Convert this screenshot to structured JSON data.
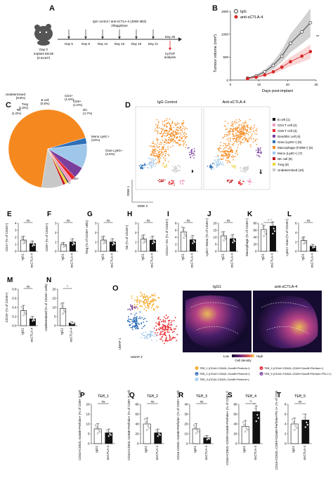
{
  "panels": {
    "A": {
      "letter": "A",
      "mouse_day0": "Day 0",
      "mouse_implant": "Implant MC38",
      "mouse_cells": "(0.5x10⁶)",
      "treatment_line1": "IgG control / anti-sCTLA-4 (JMW-3B3)",
      "treatment_line2": "200µg/dose",
      "days": [
        "Day 6",
        "Day 9",
        "Day 12",
        "Day 15",
        "Day 18",
        "Day 21",
        "Day 28"
      ],
      "cytof_line1": "CyTOF",
      "cytof_line2": "analysis"
    },
    "B": {
      "letter": "B",
      "legend": [
        "IgG",
        "anti-sCTLA-4"
      ],
      "ylabel": "Tumour volume (mm³)",
      "xlabel": "Days post-implant",
      "yticks": [
        "0",
        "500",
        "1000",
        "1500"
      ],
      "xticks": [
        "0",
        "10",
        "20",
        "30"
      ],
      "sig": "**",
      "colors": {
        "igg": "#333333",
        "anti": "#d62728"
      }
    },
    "C": {
      "letter": "C",
      "slices": [
        {
          "label": "Macrophage F4/80+",
          "pct": "(67.2%)",
          "value": 67.2,
          "color": "#f5891f"
        },
        {
          "label": "Gran Ly6G+",
          "pct": "(2.5%)",
          "value": 2.5,
          "color": "#2e6fb7"
        },
        {
          "label": "Mono Ly6C+",
          "pct": "(10%)",
          "value": 10,
          "color": "#9ec7ea"
        },
        {
          "label": "DC",
          "pct": "(4.7%)",
          "value": 4.7,
          "color": "#7a3e9d"
        },
        {
          "label": "CD8+",
          "pct": "(1.6%)",
          "value": 1.6,
          "color": "#e5262b"
        },
        {
          "label": "CD4+",
          "pct": "(1.6%)",
          "value": 1.6,
          "color": "#f19ac1"
        },
        {
          "label": "B cell",
          "pct": "(0.5%)",
          "value": 0.5,
          "color": "#111111"
        },
        {
          "label": "Treg",
          "pct": "(1.0%)",
          "value": 1.0,
          "color": "#f1d33a"
        },
        {
          "label": "NK",
          "pct": "(1.0%)",
          "value": 1.0,
          "color": "#c4141b"
        },
        {
          "label": "Undetermined",
          "pct": "(8.8%)",
          "value": 8.8,
          "color": "#c8c8c8"
        }
      ]
    },
    "D": {
      "letter": "D",
      "title_left": "IgG Control",
      "title_right": "Anti-sCTLA-4",
      "axis_y": "tSNE 1",
      "axis_x": "tSNE 2",
      "legend": [
        {
          "label": "B cell (1)",
          "color": "#111111"
        },
        {
          "label": "CD4 T cell (2)",
          "color": "#f19ac1"
        },
        {
          "label": "CD8 T cell (3)",
          "color": "#e5262b"
        },
        {
          "label": "Dendritic cell (4)",
          "color": "#7a3e9d"
        },
        {
          "label": "Gran (Ly6G+) (5)",
          "color": "#2e6fb7"
        },
        {
          "label": "Macrophage (F4/80+) (6)",
          "color": "#f5891f"
        },
        {
          "label": "Mono (Ly6C+) (7)",
          "color": "#9ec7ea"
        },
        {
          "label": "NK cell (8)",
          "color": "#c4141b"
        },
        {
          "label": "Treg (9)",
          "color": "#f1d33a"
        },
        {
          "label": "Undetermined (10)",
          "color": "#c8c8c8"
        }
      ]
    },
    "bars_row1": [
      {
        "letter": "E",
        "ylabel": "CD4+ (% of CD45+)",
        "yticks": [
          "0",
          "1",
          "2",
          "3",
          "4"
        ],
        "ymax": 4,
        "values": [
          1.6,
          1.1
        ],
        "sig": "ns"
      },
      {
        "letter": "F",
        "ylabel": "CD8+ (% of CD45+)",
        "yticks": [
          "0",
          "1",
          "2",
          "3"
        ],
        "ymax": 3,
        "values": [
          0.7,
          1.0
        ],
        "sig": "ns"
      },
      {
        "letter": "G",
        "ylabel": "Treg (% of CD45+ cells)",
        "yticks": [
          "0",
          "1",
          "2",
          "3"
        ],
        "ymax": 3,
        "values": [
          1.2,
          1.0
        ],
        "sig": "ns"
      },
      {
        "letter": "H",
        "ylabel": "NK (% of CD45+)",
        "yticks": [
          "0",
          "1",
          "2",
          "3"
        ],
        "ymax": 3,
        "values": [
          1.3,
          1.2
        ],
        "sig": "ns"
      },
      {
        "letter": "I",
        "ylabel": "CD11c+ DC (% of CD45+)",
        "yticks": [
          "0",
          "2",
          "4",
          "6",
          "8"
        ],
        "ymax": 8,
        "values": [
          5.5,
          3.3
        ],
        "sig": "ns"
      },
      {
        "letter": "J",
        "ylabel": "Ly6C+ Mono (% of CD45+)",
        "yticks": [
          "0",
          "5",
          "10",
          "15",
          "20"
        ],
        "ymax": 20,
        "values": [
          11,
          9
        ],
        "sig": "ns"
      },
      {
        "letter": "K",
        "ylabel": "Macrophage (% of CD45+)",
        "yticks": [
          "0",
          "20",
          "40",
          "60",
          "80"
        ],
        "ymax": 80,
        "values": [
          62,
          72
        ],
        "sig": "*"
      },
      {
        "letter": "L",
        "ylabel": "Ly6G+ Gran (% of CD45+)",
        "yticks": [
          "0",
          "2",
          "4",
          "6"
        ],
        "ymax": 6,
        "values": [
          2.3,
          1.1
        ],
        "sig": "ns"
      }
    ],
    "bars_row2": [
      {
        "letter": "M",
        "ylabel": "CD19+ (% of CD45+)",
        "yticks": [
          "0.0",
          "0.2",
          "0.4",
          "0.6",
          "0.8"
        ],
        "ymax": 0.8,
        "values": [
          0.33,
          0.15
        ],
        "sig": "ns"
      },
      {
        "letter": "N",
        "ylabel": "Undetermined (% of CD45+ cells)",
        "yticks": [
          "0",
          "5",
          "10",
          "15",
          "20"
        ],
        "ymax": 20,
        "values": [
          9.5,
          1.5
        ],
        "sig": "*"
      }
    ],
    "O": {
      "letter": "O",
      "umap_y": "UMAP 1",
      "umap_x": "UMAP 2",
      "title_left": "IgG1",
      "title_right": "anti-sCTLA-4",
      "density_low": "Low",
      "density_high": "High",
      "density_label": "Cell density",
      "legend": [
        {
          "num": "1",
          "label": "TEff_1 (CD44+CD62L-GzmB+Perforin+)",
          "color": "#f5a623"
        },
        {
          "num": "2",
          "label": "TEff_2 (CD44+CD62L-GzmB+Perforin+)",
          "color": "#2e6fb7"
        },
        {
          "num": "3",
          "label": "TEff_3 (CD44-CD62L-GzmB+Perforin+)",
          "color": "#9ec7ea"
        },
        {
          "num": "4",
          "label": "TEff_4 (CD44+CD62L-CD69+GzmB+Perforin+)",
          "color": "#e5262b"
        },
        {
          "num": "5",
          "label": "TEff_5 (CD44+CD62L-CD69+GzmB+Perforin+PD-1+)",
          "color": "#7a3e9d"
        }
      ]
    },
    "bars_row3": [
      {
        "letter": "P",
        "title": "TEff_1",
        "ylabel": "CD44+CD62L-GzmB+Perforin+ (% of CD8+ T cells)",
        "yticks": [
          "0",
          "5",
          "10",
          "15",
          "20"
        ],
        "ymax": 20,
        "values": [
          7.5,
          5.5
        ],
        "sig": "ns"
      },
      {
        "letter": "Q",
        "title": "TEff_2",
        "ylabel": "CD44+CD62L-GzmB+Perforin+ (% of CD8+ T cells)",
        "yticks": [
          "0",
          "20",
          "40",
          "60",
          "80"
        ],
        "ymax": 80,
        "values": [
          40,
          22
        ],
        "sig": "ns"
      },
      {
        "letter": "R",
        "title": "TEff_3",
        "ylabel": "CD44-CD62L-GzmB+Perforin+ (% of CD8+ T cells)",
        "yticks": [
          "0",
          "10",
          "20",
          "30",
          "40"
        ],
        "ymax": 40,
        "values": [
          15,
          6
        ],
        "sig": "ns"
      },
      {
        "letter": "S",
        "title": "TEff_4",
        "ylabel": "CD44+CD62L-CD69+GzmB+Perforin+ (% of CD8+ T cells)",
        "yticks": [
          "0",
          "20",
          "40",
          "60",
          "80"
        ],
        "ymax": 80,
        "values": [
          35,
          65
        ],
        "sig": "**"
      },
      {
        "letter": "T",
        "title": "TEff_5",
        "ylabel": "CD44+CD62L-CD69+GzmB+Perforin+PD-1+ (% of CD8+ T cells)",
        "yticks": [
          "0",
          "2",
          "4",
          "6",
          "8"
        ],
        "ymax": 8,
        "values": [
          4.0,
          4.8
        ],
        "sig": "ns"
      }
    ],
    "group_labels": [
      "IgG1",
      "αsCTLA-4"
    ]
  },
  "chart_data": [
    {
      "type": "line",
      "panel": "B",
      "xlabel": "Days post-implant",
      "ylabel": "Tumour volume (mm³)",
      "xlim": [
        0,
        30
      ],
      "ylim": [
        0,
        1500
      ],
      "series": [
        {
          "name": "IgG",
          "x": [
            6,
            9,
            12,
            15,
            18,
            21,
            25,
            28
          ],
          "values": [
            40,
            90,
            180,
            320,
            520,
            800,
            1050,
            1250
          ]
        },
        {
          "name": "anti-sCTLA-4",
          "x": [
            6,
            9,
            12,
            15,
            18,
            21,
            25,
            28
          ],
          "values": [
            30,
            60,
            110,
            180,
            280,
            400,
            520,
            620
          ]
        }
      ]
    },
    {
      "type": "pie",
      "panel": "C",
      "categories": [
        "Macrophage F4/80+",
        "Gran Ly6G+",
        "Mono Ly6C+",
        "DC",
        "CD8+",
        "CD4+",
        "B cell",
        "Treg",
        "NK",
        "Undetermined"
      ],
      "values": [
        67.2,
        2.5,
        10,
        4.7,
        1.6,
        1.6,
        0.5,
        1.0,
        1.0,
        8.8
      ]
    },
    {
      "type": "bar",
      "panel": "E",
      "categories": [
        "IgG1",
        "αsCTLA-4"
      ],
      "values": [
        1.6,
        1.1
      ],
      "ylabel": "CD4+ (% of CD45+)",
      "ylim": [
        0,
        4
      ]
    },
    {
      "type": "bar",
      "panel": "F",
      "categories": [
        "IgG1",
        "αsCTLA-4"
      ],
      "values": [
        0.7,
        1.0
      ],
      "ylabel": "CD8+ (% of CD45+)",
      "ylim": [
        0,
        3
      ]
    },
    {
      "type": "bar",
      "panel": "G",
      "categories": [
        "IgG1",
        "αsCTLA-4"
      ],
      "values": [
        1.2,
        1.0
      ],
      "ylabel": "Treg (% of CD45+ cells)",
      "ylim": [
        0,
        3
      ]
    },
    {
      "type": "bar",
      "panel": "H",
      "categories": [
        "IgG1",
        "αsCTLA-4"
      ],
      "values": [
        1.3,
        1.2
      ],
      "ylabel": "NK (% of CD45+)",
      "ylim": [
        0,
        3
      ]
    },
    {
      "type": "bar",
      "panel": "I",
      "categories": [
        "IgG1",
        "αsCTLA-4"
      ],
      "values": [
        5.5,
        3.3
      ],
      "ylabel": "CD11c+ DC (% of CD45+)",
      "ylim": [
        0,
        8
      ]
    },
    {
      "type": "bar",
      "panel": "J",
      "categories": [
        "IgG1",
        "αsCTLA-4"
      ],
      "values": [
        11,
        9
      ],
      "ylabel": "Ly6C+ Mono (% of CD45+)",
      "ylim": [
        0,
        20
      ]
    },
    {
      "type": "bar",
      "panel": "K",
      "categories": [
        "IgG1",
        "αsCTLA-4"
      ],
      "values": [
        62,
        72
      ],
      "ylabel": "Macrophage (% of CD45+)",
      "ylim": [
        0,
        80
      ]
    },
    {
      "type": "bar",
      "panel": "L",
      "categories": [
        "IgG1",
        "αsCTLA-4"
      ],
      "values": [
        2.3,
        1.1
      ],
      "ylabel": "Ly6G+ Gran (% of CD45+)",
      "ylim": [
        0,
        6
      ]
    },
    {
      "type": "bar",
      "panel": "M",
      "categories": [
        "IgG1",
        "αsCTLA-4"
      ],
      "values": [
        0.33,
        0.15
      ],
      "ylabel": "CD19+ (% of CD45+)",
      "ylim": [
        0,
        0.8
      ]
    },
    {
      "type": "bar",
      "panel": "N",
      "categories": [
        "IgG1",
        "αsCTLA-4"
      ],
      "values": [
        9.5,
        1.5
      ],
      "ylabel": "Undetermined (% of CD45+ cells)",
      "ylim": [
        0,
        20
      ]
    },
    {
      "type": "bar",
      "panel": "P",
      "categories": [
        "IgG1",
        "αsCTLA-4"
      ],
      "values": [
        7.5,
        5.5
      ],
      "ylim": [
        0,
        20
      ]
    },
    {
      "type": "bar",
      "panel": "Q",
      "categories": [
        "IgG1",
        "αsCTLA-4"
      ],
      "values": [
        40,
        22
      ],
      "ylim": [
        0,
        80
      ]
    },
    {
      "type": "bar",
      "panel": "R",
      "categories": [
        "IgG1",
        "αsCTLA-4"
      ],
      "values": [
        15,
        6
      ],
      "ylim": [
        0,
        40
      ]
    },
    {
      "type": "bar",
      "panel": "S",
      "categories": [
        "IgG1",
        "αsCTLA-4"
      ],
      "values": [
        35,
        65
      ],
      "ylim": [
        0,
        80
      ]
    },
    {
      "type": "bar",
      "panel": "T",
      "categories": [
        "IgG1",
        "αsCTLA-4"
      ],
      "values": [
        4.0,
        4.8
      ],
      "ylim": [
        0,
        8
      ]
    }
  ]
}
